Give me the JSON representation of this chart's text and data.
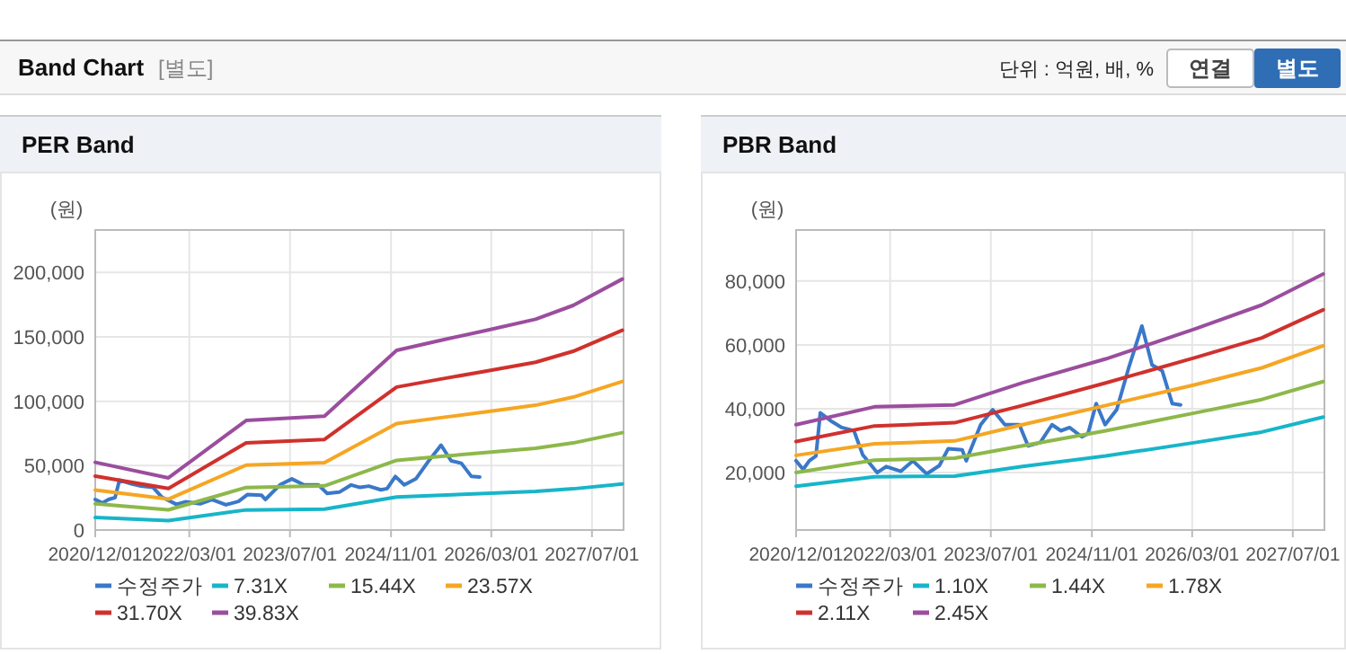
{
  "chart_data": [
    {
      "type": "other",
      "title": "Band Chart",
      "subtitle": "[별도]",
      "annotations": [
        "단위 : 억원, 배, %",
        "연결",
        "별도"
      ]
    },
    {
      "type": "line",
      "title": "PER Band",
      "ylabel": "(원)",
      "grid": true,
      "legend": "bottom",
      "x": [
        "2020-12-01",
        "2021-11-20",
        "2022-12-01",
        "2023-12-15",
        "2024-11-28",
        "2025-07-01",
        "2026-02-01",
        "2026-10-01",
        "2027-04-01",
        "2027-11-25"
      ],
      "xlim": [
        "2020-12-01",
        "2027-12-01"
      ],
      "xticks": [
        {
          "value": "2020-12-01",
          "label": "2020/12/01"
        },
        {
          "value": "2022-03-01",
          "label": "2022/03/01"
        },
        {
          "value": "2023-07-01",
          "label": "2023/07/01"
        },
        {
          "value": "2024-11-01",
          "label": "2024/11/01"
        },
        {
          "value": "2026-03-01",
          "label": "2026/03/01"
        },
        {
          "value": "2027-07-01",
          "label": "2027/07/01"
        }
      ],
      "ylim": [
        0,
        233000
      ],
      "yticks": [
        {
          "value": 0,
          "label": "0"
        },
        {
          "value": 50000,
          "label": "50,000"
        },
        {
          "value": 100000,
          "label": "100,000"
        },
        {
          "value": 150000,
          "label": "150,000"
        },
        {
          "value": 200000,
          "label": "200,000"
        }
      ],
      "series": [
        {
          "name": "수정주가",
          "color": "#3a78c9",
          "x": [
            "2020-12-01",
            "2021-01-04",
            "2021-02-03",
            "2021-03-07",
            "2021-03-28",
            "2021-05-25",
            "2021-07-10",
            "2021-09-07",
            "2021-10-19",
            "2021-12-28",
            "2022-02-10",
            "2022-04-22",
            "2022-06-19",
            "2022-08-25",
            "2022-10-25",
            "2022-12-07",
            "2023-02-13",
            "2023-03-04",
            "2023-05-13",
            "2023-07-10",
            "2023-09-07",
            "2023-11-16",
            "2023-12-28",
            "2024-02-25",
            "2024-04-22",
            "2024-06-04",
            "2024-07-16",
            "2024-09-13",
            "2024-10-13",
            "2024-11-22",
            "2025-01-04",
            "2025-03-01",
            "2025-04-28",
            "2025-07-01",
            "2025-08-19",
            "2025-10-07",
            "2025-11-25",
            "2026-01-04"
          ],
          "values": [
            23700,
            21000,
            23700,
            25200,
            38700,
            35900,
            34100,
            33100,
            25600,
            20000,
            21900,
            20400,
            23700,
            19600,
            22200,
            27500,
            27100,
            23700,
            35000,
            39700,
            35000,
            35000,
            28400,
            29400,
            35000,
            33100,
            34100,
            31200,
            32200,
            41600,
            35000,
            39700,
            52800,
            65900,
            53700,
            51900,
            41600,
            41200
          ]
        },
        {
          "name": "7.31X",
          "color": "#17b5c9",
          "values": [
            9700,
            7400,
            15600,
            16200,
            25600,
            27000,
            28400,
            30000,
            32000,
            35800
          ]
        },
        {
          "name": "15.44X",
          "color": "#8db84a",
          "values": [
            20400,
            15700,
            33000,
            34300,
            54100,
            57200,
            60100,
            63500,
            67600,
            75600
          ]
        },
        {
          "name": "23.57X",
          "color": "#f5a623",
          "values": [
            31100,
            24000,
            50400,
            52300,
            82600,
            87300,
            91700,
            96900,
            103200,
            115400
          ]
        },
        {
          "name": "31.70X",
          "color": "#d0312d",
          "values": [
            41900,
            32200,
            67700,
            70300,
            111000,
            117300,
            123300,
            130300,
            138800,
            155100
          ]
        },
        {
          "name": "39.83X",
          "color": "#9b4d9e",
          "values": [
            52600,
            40500,
            85100,
            88400,
            139500,
            147400,
            154900,
            163700,
            174400,
            194900
          ]
        }
      ]
    },
    {
      "type": "line",
      "title": "PBR Band",
      "ylabel": "(원)",
      "grid": true,
      "legend": "bottom",
      "x": [
        "2020-12-01",
        "2021-12-15",
        "2023-01-07",
        "2023-12-01",
        "2025-01-07",
        "2026-03-15",
        "2027-02-01",
        "2027-11-25"
      ],
      "xlim": [
        "2020-12-01",
        "2027-12-01"
      ],
      "xticks": [
        {
          "value": "2020-12-01",
          "label": "2020/12/01"
        },
        {
          "value": "2022-03-01",
          "label": "2022/03/01"
        },
        {
          "value": "2023-07-01",
          "label": "2023/07/01"
        },
        {
          "value": "2024-11-01",
          "label": "2024/11/01"
        },
        {
          "value": "2026-03-01",
          "label": "2026/03/01"
        },
        {
          "value": "2027-07-01",
          "label": "2027/07/01"
        }
      ],
      "ylim": [
        2000,
        96000
      ],
      "yticks": [
        {
          "value": 20000,
          "label": "20,000"
        },
        {
          "value": 40000,
          "label": "40,000"
        },
        {
          "value": 60000,
          "label": "60,000"
        },
        {
          "value": 80000,
          "label": "80,000"
        }
      ],
      "series": [
        {
          "name": "수정주가",
          "color": "#3a78c9",
          "x": [
            "2020-12-01",
            "2021-01-04",
            "2021-02-03",
            "2021-03-07",
            "2021-03-28",
            "2021-05-25",
            "2021-07-10",
            "2021-09-07",
            "2021-10-19",
            "2021-12-28",
            "2022-02-10",
            "2022-04-22",
            "2022-06-19",
            "2022-08-25",
            "2022-10-25",
            "2022-12-07",
            "2023-02-13",
            "2023-03-04",
            "2023-05-13",
            "2023-07-10",
            "2023-09-07",
            "2023-11-16",
            "2023-12-28",
            "2024-02-25",
            "2024-04-22",
            "2024-06-04",
            "2024-07-16",
            "2024-09-13",
            "2024-10-13",
            "2024-11-22",
            "2025-01-04",
            "2025-03-01",
            "2025-04-28",
            "2025-07-01",
            "2025-08-19",
            "2025-10-07",
            "2025-11-25",
            "2026-01-04"
          ],
          "values": [
            23700,
            21000,
            23700,
            25200,
            38700,
            35900,
            34100,
            33100,
            25600,
            20000,
            21900,
            20400,
            23700,
            19600,
            22200,
            27500,
            27100,
            23700,
            35000,
            39700,
            35000,
            35000,
            28400,
            29400,
            35000,
            33100,
            34100,
            31200,
            32200,
            41600,
            35000,
            39700,
            52800,
            65900,
            53700,
            51900,
            41600,
            41200
          ]
        },
        {
          "name": "1.10X",
          "color": "#17b5c9",
          "values": [
            15700,
            18700,
            18900,
            21900,
            25200,
            29400,
            32700,
            37400
          ]
        },
        {
          "name": "1.44X",
          "color": "#8db84a",
          "values": [
            20000,
            23900,
            24500,
            28400,
            33100,
            38700,
            42900,
            48500
          ]
        },
        {
          "name": "1.78X",
          "color": "#f5a623",
          "values": [
            25400,
            29000,
            29900,
            35000,
            41000,
            47500,
            52800,
            59700
          ]
        },
        {
          "name": "2.11X",
          "color": "#d0312d",
          "values": [
            29700,
            34600,
            35600,
            41000,
            48100,
            56000,
            62200,
            71000
          ]
        },
        {
          "name": "2.45X",
          "color": "#9b4d9e",
          "values": [
            35000,
            40600,
            41200,
            48100,
            55600,
            65000,
            72500,
            82200
          ]
        }
      ]
    }
  ]
}
